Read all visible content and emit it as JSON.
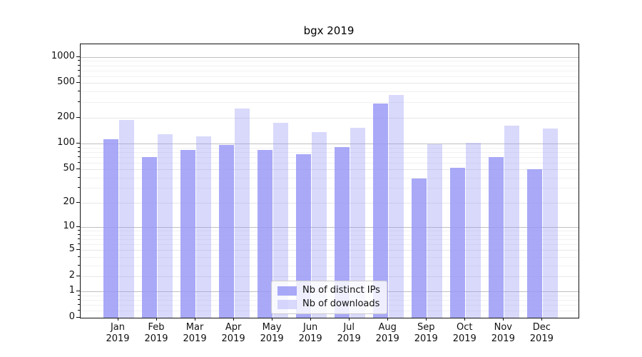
{
  "chart_data": {
    "type": "bar",
    "title": "bgx 2019",
    "categories": [
      "Jan 2019",
      "Feb 2019",
      "Mar 2019",
      "Apr 2019",
      "May 2019",
      "Jun 2019",
      "Jul 2019",
      "Aug 2019",
      "Sep 2019",
      "Oct 2019",
      "Nov 2019",
      "Dec 2019"
    ],
    "series": [
      {
        "name": "Nb of distinct IPs",
        "values": [
          112,
          69,
          85,
          97,
          85,
          75,
          91,
          288,
          39,
          52,
          70,
          50
        ]
      },
      {
        "name": "Nb of downloads",
        "values": [
          188,
          127,
          121,
          252,
          175,
          135,
          152,
          367,
          98,
          102,
          160,
          148
        ]
      }
    ],
    "yscale": "log1p",
    "ylim": [
      0,
      1400
    ],
    "y_ticks": [
      0,
      1,
      2,
      5,
      10,
      20,
      50,
      100,
      200,
      500,
      1000
    ],
    "grid": "both",
    "legend_position": "lower center inside"
  },
  "colors": {
    "ip_bar": "rgba(150,150,246,0.82)",
    "downloads_bar": "rgba(150,150,246,0.36)",
    "major_grid": "#c0c0c0",
    "light_grid": "#e7e7e7",
    "minor_grid": "#f1f1f1",
    "axis": "#111111",
    "text": "#111111"
  }
}
